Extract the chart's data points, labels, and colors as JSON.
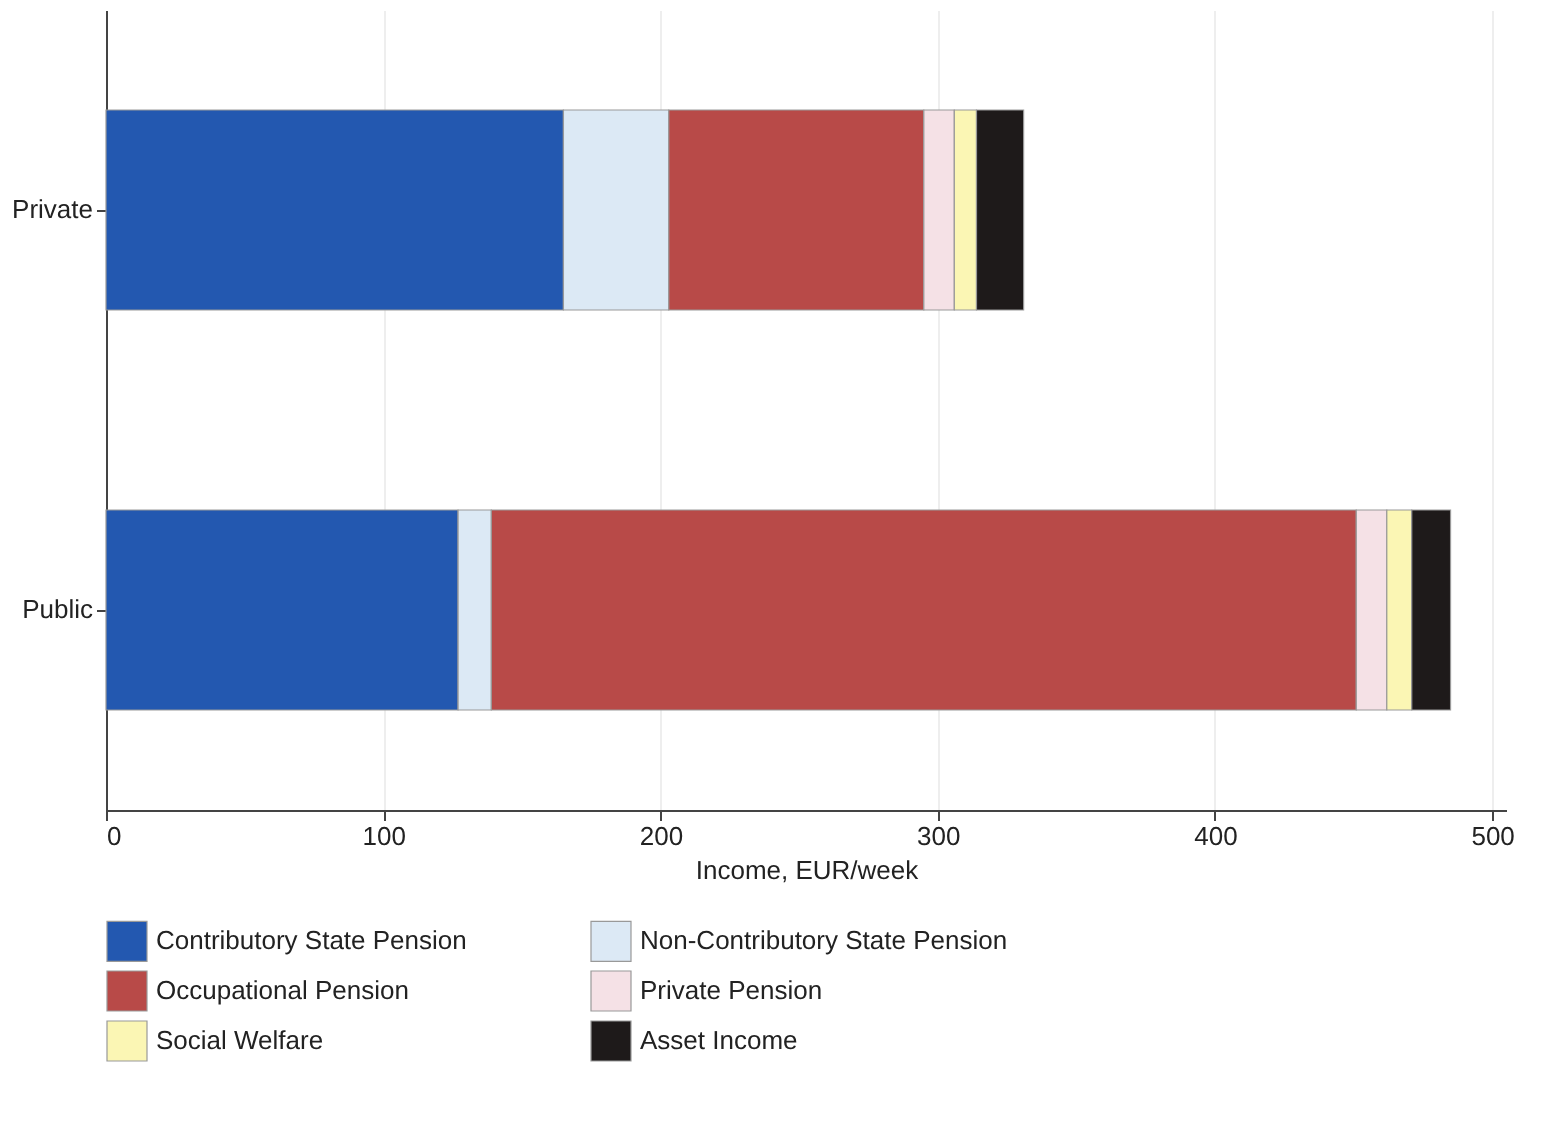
{
  "chart_data": {
    "type": "bar",
    "orientation": "horizontal",
    "stacked": true,
    "xlabel": "Income, EUR/week",
    "categories": [
      "Private",
      "Public"
    ],
    "series": [
      {
        "name": "Contributory State Pension",
        "color": "#2358b0",
        "values": [
          165,
          127
        ]
      },
      {
        "name": "Non-Contributory State Pension",
        "color": "#dce9f5",
        "values": [
          38,
          12
        ]
      },
      {
        "name": "Occupational Pension",
        "color": "#b84a48",
        "values": [
          92,
          312
        ]
      },
      {
        "name": "Private Pension",
        "color": "#f5e1e6",
        "values": [
          11,
          11
        ]
      },
      {
        "name": "Social Welfare",
        "color": "#fbf6b4",
        "values": [
          8,
          9
        ]
      },
      {
        "name": "Asset Income",
        "color": "#1e1a1a",
        "values": [
          17,
          14
        ]
      }
    ],
    "xlim": [
      0,
      505
    ],
    "xticks": [
      0,
      100,
      200,
      300,
      400,
      500
    ],
    "grid": "x",
    "legend": "bottom"
  }
}
